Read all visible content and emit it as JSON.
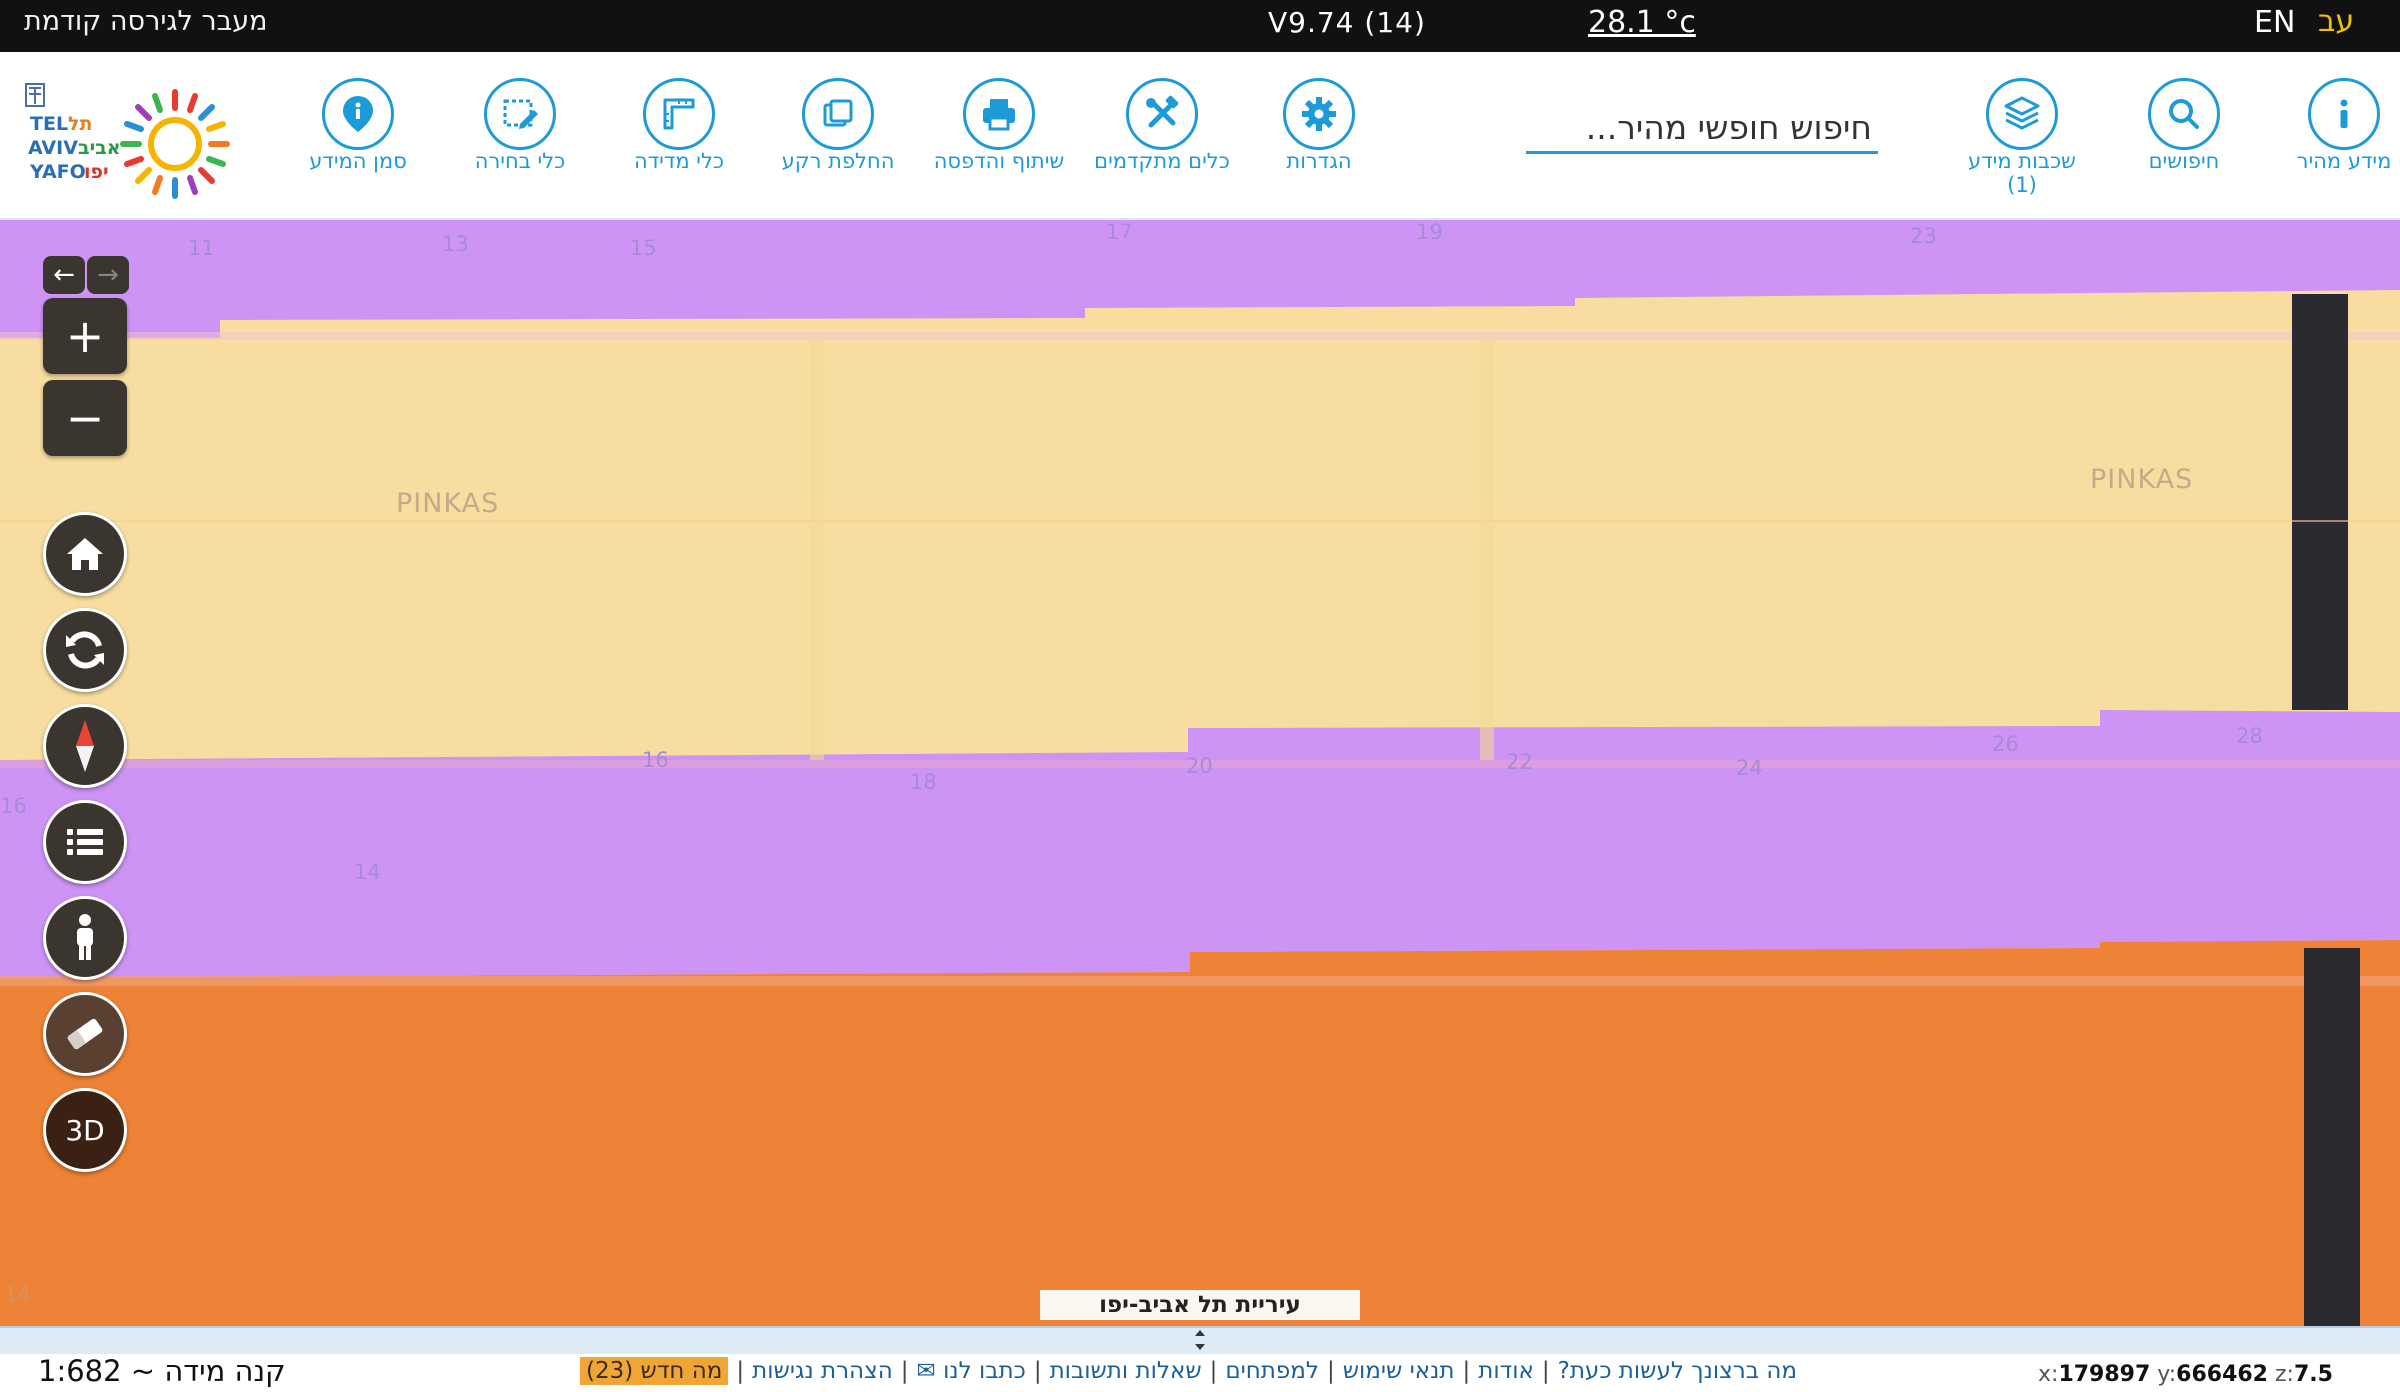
{
  "topbar": {
    "prev_version": "מעבר לגירסה קודמת",
    "version": "V9.74 (14)",
    "temperature": "28.1 °c",
    "lang_en": "EN",
    "lang_he": "עב"
  },
  "toolbar": {
    "logo_text": "TEL AVIV YAFO תל אביב יפו",
    "tools": [
      {
        "id": "quick-info",
        "label": "מידע מהיר",
        "icon": "info-icon"
      },
      {
        "id": "searches",
        "label": "חיפושים",
        "icon": "magnifier-icon"
      },
      {
        "id": "layers",
        "label": "שכבות מידע",
        "badge": "(1)",
        "icon": "layers-icon"
      },
      {
        "id": "settings",
        "label": "הגדרות",
        "icon": "gear-icon"
      },
      {
        "id": "advanced-tools",
        "label": "כלים מתקדמים",
        "icon": "tools-icon"
      },
      {
        "id": "share-print",
        "label": "שיתוף והדפסה",
        "icon": "printer-icon"
      },
      {
        "id": "basemap",
        "label": "החלפת רקע",
        "icon": "basemap-icon"
      },
      {
        "id": "measure",
        "label": "כלי מדידה",
        "icon": "ruler-icon"
      },
      {
        "id": "select",
        "label": "כלי בחירה",
        "icon": "selection-icon"
      },
      {
        "id": "mark-info",
        "label": "סמן המידע",
        "icon": "map-pin-icon"
      }
    ],
    "search_placeholder": "חיפוש חופשי מהיר..."
  },
  "map": {
    "streets": [
      "PINKAS",
      "PINKAS"
    ],
    "house_numbers": [
      "11",
      "13",
      "15",
      "17",
      "19",
      "23",
      "16",
      "18",
      "20",
      "22",
      "24",
      "26",
      "28",
      "14",
      "16",
      "14"
    ],
    "city_label": "עיריית תל אביב-יפו",
    "colors": {
      "residential": "#f7dea0",
      "purple_zone": "#cd94f5",
      "orange_zone": "#ee8236",
      "road": "#2a2a30",
      "control": "#3b3530"
    }
  },
  "controls": {
    "back_arrow": "←",
    "forward_arrow": "→",
    "zoom_in": "+",
    "zoom_out": "−",
    "btn_3d": "3D"
  },
  "footer": {
    "scale_text": "קנה מידה ~ 1:682",
    "links": [
      "מה ברצונך לעשות כעת?",
      "אודות",
      "תנאי שימוש",
      "למפתחים",
      "שאלות ותשובות",
      "כתבו לנו ✉",
      "הצהרת נגישות"
    ],
    "whats_new": "מה חדש (23)",
    "coord_x_label": "x:",
    "coord_x": "179897",
    "coord_y_label": "y:",
    "coord_y": "666462",
    "coord_z_label": "z:",
    "coord_z": "7.5"
  }
}
